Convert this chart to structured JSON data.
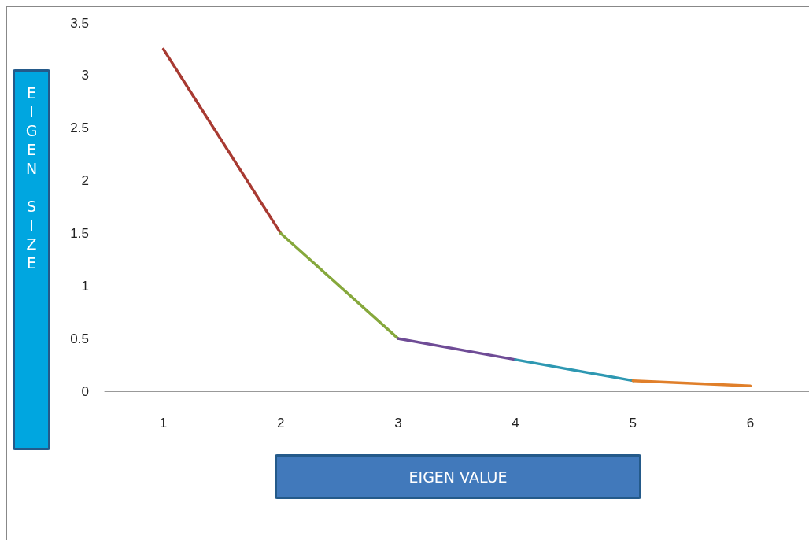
{
  "chart_data": {
    "type": "line",
    "xlabel": "EIGEN VALUE",
    "ylabel": "EIGEN SIZE",
    "categories": [
      "1",
      "2",
      "3",
      "4",
      "5",
      "6"
    ],
    "series": [
      {
        "color": "#a83a32",
        "values": [
          3.25,
          1.5,
          null,
          null,
          null,
          null
        ]
      },
      {
        "color": "#86a83c",
        "values": [
          null,
          1.5,
          0.5,
          null,
          null,
          null
        ]
      },
      {
        "color": "#6f4c96",
        "values": [
          null,
          null,
          0.5,
          0.3,
          null,
          null
        ]
      },
      {
        "color": "#2e98b2",
        "values": [
          null,
          null,
          null,
          0.3,
          0.1,
          null
        ]
      },
      {
        "color": "#e07f2a",
        "values": [
          null,
          null,
          null,
          null,
          0.1,
          0.05
        ]
      }
    ],
    "ylim": [
      0,
      3.5
    ],
    "yticks": [
      0,
      0.5,
      1,
      1.5,
      2,
      2.5,
      3,
      3.5
    ],
    "grid": false,
    "marker": "none",
    "line_style": "solid"
  }
}
